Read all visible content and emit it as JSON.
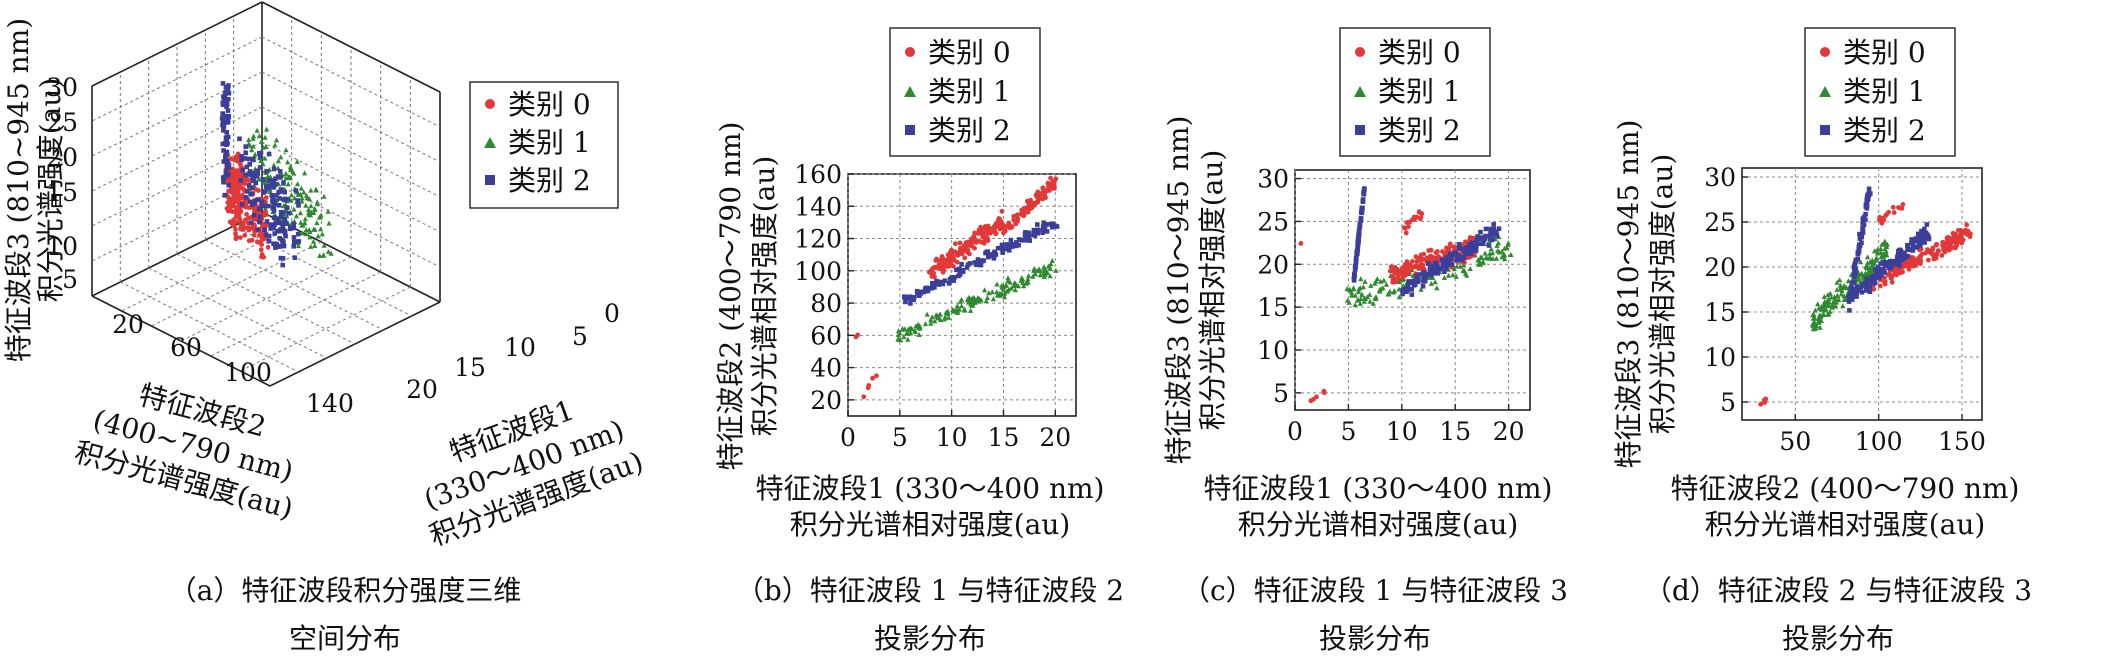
{
  "colors": {
    "c0": "#e23838",
    "c1": "#2f8a2f",
    "c2": "#3b3f9a"
  },
  "legend": {
    "c0": "类别 0",
    "c1": "类别 1",
    "c2": "类别 2"
  },
  "captions": {
    "a": [
      "（a）特征波段积分强度三维",
      "空间分布"
    ],
    "b": [
      "（b）特征波段 1 与特征波段 2",
      "投影分布"
    ],
    "c": [
      "（c）特征波段 1 与特征波段 3",
      "投影分布"
    ],
    "d": [
      "（d）特征波段 2 与特征波段 3",
      "投影分布"
    ]
  },
  "chart_data": [
    {
      "id": "a",
      "type": "scatter",
      "view": "3d",
      "xlabel": [
        "特征波段1",
        "(330～400 nm)",
        "积分光谱强度(au)"
      ],
      "ylabel": [
        "特征波段2",
        "(400~790 nm)",
        "积分光谱强度(au)"
      ],
      "zlabel": [
        "特征波段3 (810~945 nm)",
        "积分光谱强度(au)"
      ],
      "xticks": [
        "0",
        "5",
        "10",
        "15",
        "20"
      ],
      "yticks": [
        "20",
        "60",
        "100",
        "140"
      ],
      "zticks": [
        "5",
        "10",
        "15",
        "20",
        "25",
        "30"
      ],
      "xlim": [
        0,
        22
      ],
      "ylim": [
        10,
        160
      ],
      "zlim": [
        3,
        32
      ],
      "series": [
        {
          "name": "类别 0",
          "marker": "circle",
          "clusters": [
            {
              "x": [
                9,
                14
              ],
              "y": [
                95,
                135
              ],
              "z": [
                16,
                24
              ],
              "n": 170
            },
            {
              "x": [
                15,
                20
              ],
              "y": [
                125,
                155
              ],
              "z": [
                18,
                26
              ],
              "n": 90
            },
            {
              "x": [
                1,
                3
              ],
              "y": [
                20,
                40
              ],
              "z": [
                4,
                6
              ],
              "n": 5
            }
          ]
        },
        {
          "name": "类别 1",
          "marker": "triangle",
          "clusters": [
            {
              "x": [
                6,
                20
              ],
              "y": [
                55,
                105
              ],
              "z": [
                14,
                23
              ],
              "n": 170
            }
          ]
        },
        {
          "name": "类别 2",
          "marker": "square",
          "clusters": [
            {
              "x": [
                5,
                7
              ],
              "y": [
                75,
                95
              ],
              "z": [
                15,
                30
              ],
              "n": 70
            },
            {
              "x": [
                9,
                20
              ],
              "y": [
                80,
                135
              ],
              "z": [
                16,
                25
              ],
              "n": 150
            }
          ]
        }
      ]
    },
    {
      "id": "b",
      "type": "scatter",
      "xlabel": [
        "特征波段1 (330～400 nm)",
        "积分光谱相对强度(au)"
      ],
      "ylabel": [
        "特征波段2 (400～790 nm)",
        "积分光谱相对强度(au)"
      ],
      "xlim": [
        0,
        22
      ],
      "ylim": [
        10,
        160
      ],
      "xticks": [
        0,
        5,
        10,
        15,
        20
      ],
      "yticks": [
        20,
        40,
        60,
        80,
        100,
        120,
        140,
        160
      ],
      "series": [
        {
          "name": "类别 0",
          "marker": "circle",
          "clusters": [
            {
              "x0": 8,
              "x1": 15,
              "y0": 100,
              "y1": 130,
              "spread": 8,
              "n": 160
            },
            {
              "x0": 15,
              "x1": 20,
              "y0": 125,
              "y1": 155,
              "spread": 6,
              "n": 90
            },
            {
              "x0": 1,
              "x1": 3,
              "y0": 18,
              "y1": 38,
              "spread": 3,
              "n": 5
            },
            {
              "x0": 0.5,
              "x1": 1,
              "y0": 58,
              "y1": 60,
              "spread": 1,
              "n": 2
            }
          ]
        },
        {
          "name": "类别 1",
          "marker": "triangle",
          "clusters": [
            {
              "x0": 5,
              "x1": 20,
              "y0": 60,
              "y1": 103,
              "spread": 6,
              "n": 160
            }
          ]
        },
        {
          "name": "类别 2",
          "marker": "square",
          "clusters": [
            {
              "x0": 5,
              "x1": 20,
              "y0": 80,
              "y1": 130,
              "spread": 5,
              "n": 150
            }
          ]
        }
      ]
    },
    {
      "id": "c",
      "type": "scatter",
      "xlabel": [
        "特征波段1 (330～400 nm)",
        "积分光谱相对强度(au)"
      ],
      "ylabel": [
        "特征波段3 (810～945 nm)",
        "积分光谱相对强度(au)"
      ],
      "xlim": [
        0,
        22
      ],
      "ylim": [
        3,
        31
      ],
      "xticks": [
        0,
        5,
        10,
        15,
        20
      ],
      "yticks": [
        5,
        10,
        15,
        20,
        25,
        30
      ],
      "series": [
        {
          "name": "类别 0",
          "marker": "circle",
          "clusters": [
            {
              "x0": 9,
              "x1": 17,
              "y0": 19,
              "y1": 22,
              "spread": 2,
              "n": 170
            },
            {
              "x0": 10,
              "x1": 12,
              "y0": 24,
              "y1": 26,
              "spread": 1,
              "n": 15
            },
            {
              "x0": 1,
              "x1": 3,
              "y0": 3.5,
              "y1": 5.5,
              "spread": 0.3,
              "n": 5
            },
            {
              "x0": 0.5,
              "x1": 0.6,
              "y0": 22.5,
              "y1": 22.5,
              "spread": 0.3,
              "n": 1
            }
          ]
        },
        {
          "name": "类别 1",
          "marker": "triangle",
          "clusters": [
            {
              "x0": 5,
              "x1": 20,
              "y0": 16,
              "y1": 22,
              "spread": 2.5,
              "n": 170
            }
          ]
        },
        {
          "name": "类别 2",
          "marker": "square",
          "clusters": [
            {
              "x0": 5.5,
              "x1": 6.5,
              "y0": 18,
              "y1": 29,
              "spread": 0.4,
              "n": 70
            },
            {
              "x0": 10,
              "x1": 19,
              "y0": 17,
              "y1": 24,
              "spread": 1.5,
              "n": 150
            }
          ]
        }
      ]
    },
    {
      "id": "d",
      "type": "scatter",
      "xlabel": [
        "特征波段2 (400～790 nm)",
        "积分光谱相对强度(au)"
      ],
      "ylabel": [
        "特征波段3 (810～945 nm)",
        "积分光谱相对强度(au)"
      ],
      "xlim": [
        18,
        162
      ],
      "ylim": [
        3,
        31
      ],
      "xticks": [
        50,
        100,
        150
      ],
      "yticks": [
        5,
        10,
        15,
        20,
        25,
        30
      ],
      "series": [
        {
          "name": "类别 0",
          "marker": "circle",
          "clusters": [
            {
              "x0": 95,
              "x1": 155,
              "y0": 18,
              "y1": 24,
              "spread": 1.5,
              "n": 170
            },
            {
              "x0": 100,
              "x1": 115,
              "y0": 25,
              "y1": 27,
              "spread": 1,
              "n": 15
            },
            {
              "x0": 20,
              "x1": 35,
              "y0": 3.5,
              "y1": 5.5,
              "spread": 0.3,
              "n": 5
            }
          ]
        },
        {
          "name": "类别 1",
          "marker": "triangle",
          "clusters": [
            {
              "x0": 60,
              "x1": 105,
              "y0": 14,
              "y1": 22,
              "spread": 2,
              "n": 170
            }
          ]
        },
        {
          "name": "类别 2",
          "marker": "square",
          "clusters": [
            {
              "x0": 82,
              "x1": 95,
              "y0": 16,
              "y1": 29,
              "spread": 1.5,
              "n": 80
            },
            {
              "x0": 85,
              "x1": 130,
              "y0": 17,
              "y1": 24,
              "spread": 1.5,
              "n": 140
            }
          ]
        }
      ]
    }
  ]
}
